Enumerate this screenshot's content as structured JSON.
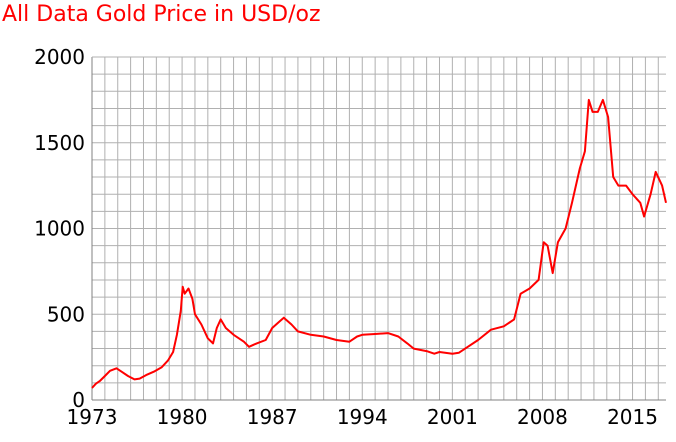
{
  "chart_data": {
    "type": "line",
    "title": "All Data Gold Price in USD/oz",
    "xlabel": "",
    "ylabel": "",
    "xlim": [
      1973,
      2017.6
    ],
    "ylim": [
      0,
      2000
    ],
    "x_ticks": [
      1973,
      1980,
      1987,
      1994,
      2001,
      2008,
      2015
    ],
    "y_ticks": [
      0,
      500,
      1000,
      1500,
      2000
    ],
    "grid": true,
    "colors": {
      "line": "#ff0000",
      "grid": "#b0b0b0",
      "axis": "#808080",
      "title": "#ff0000"
    },
    "series": [
      {
        "x": [
          1973.0,
          1973.3,
          1973.6,
          1974.0,
          1974.4,
          1974.9,
          1975.3,
          1975.8,
          1976.3,
          1976.7,
          1977.2,
          1977.8,
          1978.4,
          1978.9,
          1979.3,
          1979.6,
          1979.9,
          1980.05,
          1980.2,
          1980.5,
          1980.8,
          1981.0,
          1981.5,
          1982.0,
          1982.4,
          1982.7,
          1983.0,
          1983.4,
          1984.0,
          1984.8,
          1985.2,
          1985.8,
          1986.5,
          1987.0,
          1987.6,
          1987.9,
          1988.5,
          1989.0,
          1990.0,
          1991.0,
          1992.0,
          1993.0,
          1993.6,
          1994.0,
          1995.0,
          1996.0,
          1996.8,
          1997.5,
          1998.0,
          1999.0,
          1999.6,
          2000.0,
          2001.0,
          2001.5,
          2002.0,
          2003.0,
          2004.0,
          2005.0,
          2005.8,
          2006.3,
          2007.0,
          2007.7,
          2008.1,
          2008.4,
          2008.8,
          2009.2,
          2009.8,
          2010.3,
          2010.9,
          2011.3,
          2011.6,
          2011.9,
          2012.3,
          2012.7,
          2013.1,
          2013.5,
          2013.9,
          2014.5,
          2015.0,
          2015.6,
          2015.9,
          2016.4,
          2016.8,
          2017.3,
          2017.6
        ],
        "values": [
          70,
          95,
          110,
          140,
          170,
          185,
          165,
          140,
          120,
          125,
          145,
          165,
          190,
          230,
          280,
          380,
          520,
          660,
          620,
          650,
          590,
          500,
          440,
          360,
          330,
          420,
          470,
          420,
          380,
          340,
          310,
          330,
          350,
          420,
          460,
          480,
          440,
          400,
          380,
          370,
          350,
          340,
          370,
          380,
          385,
          390,
          370,
          330,
          300,
          285,
          270,
          280,
          270,
          275,
          300,
          350,
          410,
          430,
          470,
          620,
          650,
          700,
          920,
          900,
          740,
          920,
          1000,
          1150,
          1350,
          1450,
          1750,
          1680,
          1680,
          1750,
          1650,
          1300,
          1250,
          1250,
          1200,
          1150,
          1070,
          1200,
          1330,
          1250,
          1150
        ]
      }
    ]
  }
}
